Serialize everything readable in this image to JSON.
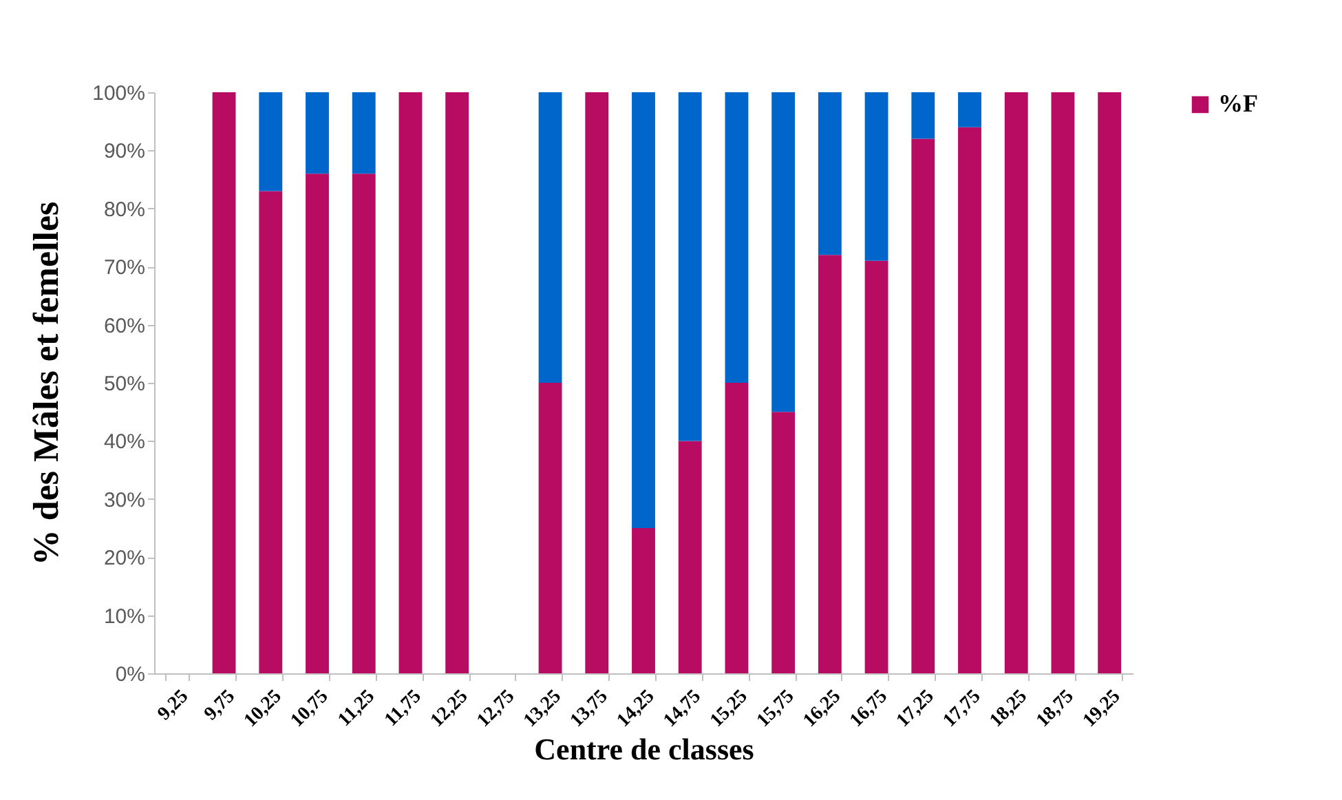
{
  "chart_data": {
    "type": "bar",
    "stacked": true,
    "xlabel": "Centre  de classes",
    "ylabel": "% des Mâles et femelles",
    "categories": [
      "9,25",
      "9,75",
      "10,25",
      "10,75",
      "11,25",
      "11,75",
      "12,25",
      "12,75",
      "13,25",
      "13,75",
      "14,25",
      "14,75",
      "15,25",
      "15,75",
      "16,25",
      "16,75",
      "17,25",
      "17,75",
      "18,25",
      "18,75",
      "19,25"
    ],
    "series": [
      {
        "name": "%F",
        "color": "#b80c62",
        "values": [
          null,
          100,
          83,
          86,
          86,
          100,
          100,
          null,
          50,
          100,
          25,
          40,
          50,
          45,
          72,
          71,
          92,
          94,
          100,
          100,
          100
        ]
      },
      {
        "color": "#0066cc",
        "values": [
          null,
          0,
          17,
          14,
          14,
          0,
          0,
          null,
          50,
          0,
          75,
          60,
          50,
          55,
          28,
          29,
          8,
          6,
          0,
          0,
          0
        ]
      }
    ],
    "ylim": [
      0,
      100
    ],
    "yticks": [
      {
        "value": 0,
        "label": "0%"
      },
      {
        "value": 10,
        "label": "10%"
      },
      {
        "value": 20,
        "label": "20%"
      },
      {
        "value": 30,
        "label": "30%"
      },
      {
        "value": 40,
        "label": "40%"
      },
      {
        "value": 50,
        "label": "50%"
      },
      {
        "value": 60,
        "label": "60%"
      },
      {
        "value": 70,
        "label": "70%"
      },
      {
        "value": 80,
        "label": "80%"
      },
      {
        "value": 90,
        "label": "90%"
      },
      {
        "value": 100,
        "label": "100%"
      }
    ],
    "grid": false,
    "legend": "right"
  }
}
